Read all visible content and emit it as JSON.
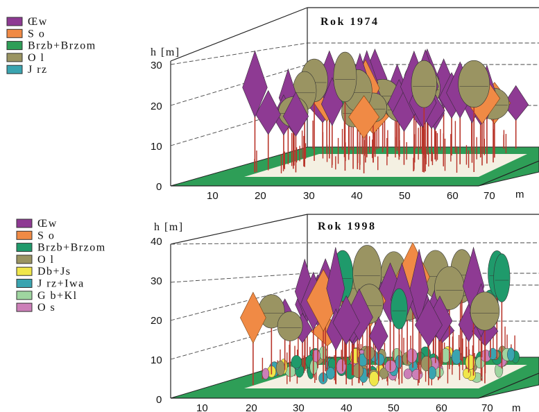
{
  "colors": {
    "ground": "#2e9e57",
    "floor": "#f4f0e2",
    "trunk": "#b8342a",
    "outline": "#333333"
  },
  "panels": [
    {
      "title": "Rok 1974",
      "axis_label": "h [m]",
      "unit_label": "m",
      "y_ticks": [
        "0",
        "10",
        "20",
        "30"
      ],
      "x_ticks": [
        "10",
        "20",
        "30",
        "40",
        "50",
        "60",
        "70"
      ],
      "legend": [
        {
          "label": "Œw",
          "color": "#8e3a93"
        },
        {
          "label": "S o",
          "color": "#f08a45"
        },
        {
          "label": "Brzb+Brzom",
          "color": "#2e9e57"
        },
        {
          "label": "O l",
          "color": "#9a9462"
        },
        {
          "label": "J rz",
          "color": "#3aa4b0"
        }
      ]
    },
    {
      "title": "Rok 1998",
      "axis_label": "h [m]",
      "unit_label": "m",
      "y_ticks": [
        "0",
        "10",
        "20",
        "30",
        "40"
      ],
      "x_ticks": [
        "10",
        "20",
        "30",
        "40",
        "50",
        "60",
        "70"
      ],
      "legend": [
        {
          "label": "Œw",
          "color": "#8e3a93"
        },
        {
          "label": "S o",
          "color": "#f08a45"
        },
        {
          "label": "Brzb+Brzom",
          "color": "#1f9a6b"
        },
        {
          "label": "O l",
          "color": "#9a9462"
        },
        {
          "label": "Db+Js",
          "color": "#f0e64a"
        },
        {
          "label": "J rz+Iwa",
          "color": "#3aa4b0"
        },
        {
          "label": "G b+Kl",
          "color": "#9fd5a0"
        },
        {
          "label": "O s",
          "color": "#cc7fb8"
        }
      ]
    }
  ]
}
